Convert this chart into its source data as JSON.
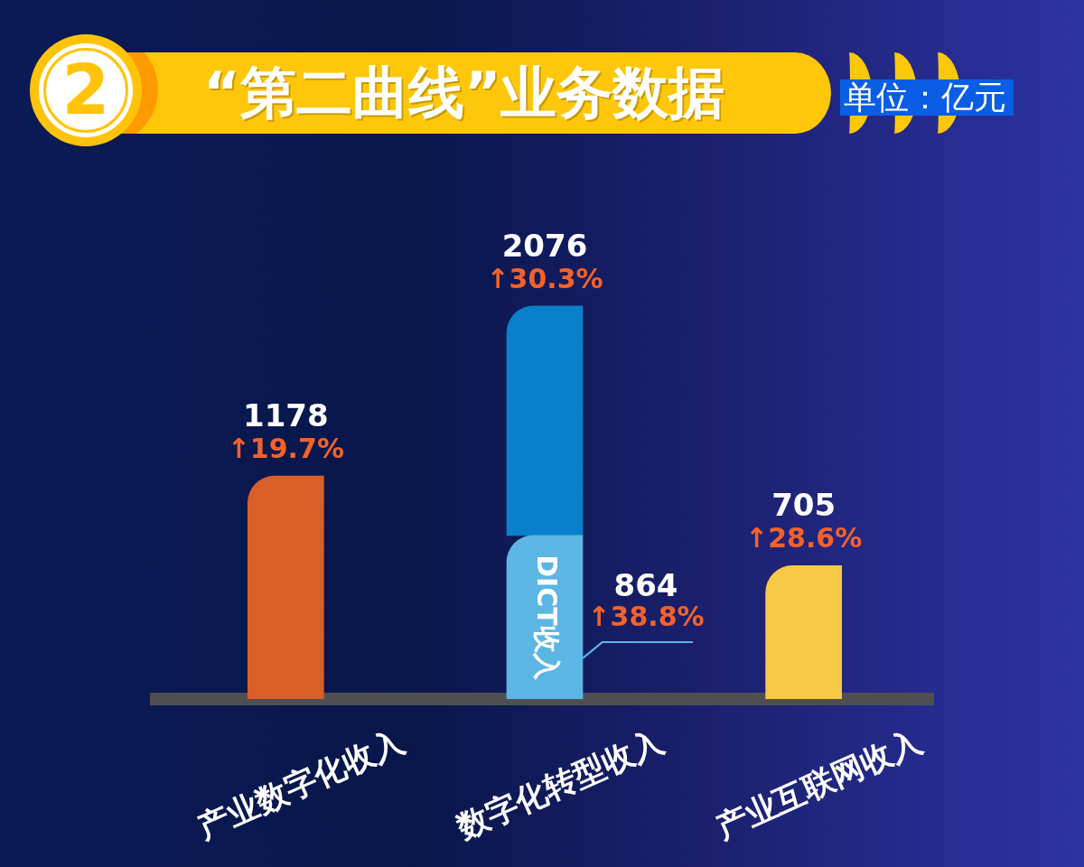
{
  "chart_data": {
    "type": "bar",
    "title": "“第二曲线”业务数据",
    "subtitle": "单位：亿元",
    "categories": [
      "产业数字化收入",
      "数字化转型收入",
      "产业互联网收入"
    ],
    "stacked": true,
    "series": [
      {
        "name": "DICT收入",
        "color": "#5cb6e4",
        "values": [
          null,
          864,
          null
        ],
        "value_labels": [
          null,
          "864",
          null
        ]
      },
      {
        "colors": [
          "#d95f28",
          "#0a7fcb",
          "#f6ca45"
        ],
        "values": [
          1178,
          1212,
          705
        ]
      }
    ],
    "totals": [
      "1178",
      "2076",
      "705"
    ],
    "tick_labels": "x",
    "annotations": [
      "2",
      {
        "text": "↑19.7%",
        "x": "产业数字化收入",
        "y": 1178
      },
      {
        "text": "↑30.3%",
        "x": "数字化转型收入",
        "y": 2076
      },
      {
        "text": "↑38.8%",
        "x": "数字化转型收入",
        "y": 864
      },
      {
        "text": "↑28.6%",
        "x": "产业互联网收入",
        "y": 705
      }
    ]
  }
}
